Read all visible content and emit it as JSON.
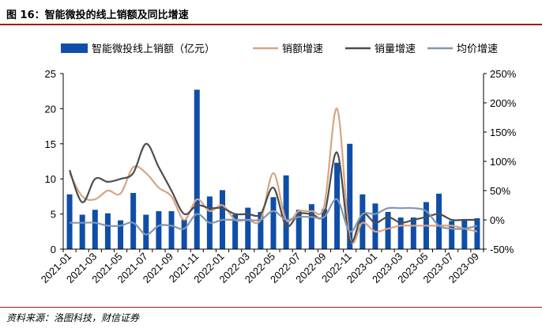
{
  "figure": {
    "title": "图 16：智能微投的线上销额及同比增速",
    "source": "资料来源：洛图科技，财信证券"
  },
  "chart_data": {
    "type": "bar+line",
    "categories": [
      "2021-01",
      "2021-02",
      "2021-03",
      "2021-04",
      "2021-05",
      "2021-06",
      "2021-07",
      "2021-08",
      "2021-09",
      "2021-10",
      "2021-11",
      "2021-12",
      "2022-01",
      "2022-02",
      "2022-03",
      "2022-04",
      "2022-05",
      "2022-06",
      "2022-07",
      "2022-08",
      "2022-09",
      "2022-10",
      "2022-11",
      "2022-12",
      "2023-01",
      "2023-02",
      "2023-03",
      "2023-04",
      "2023-05",
      "2023-06",
      "2023-07",
      "2023-08",
      "2023-09"
    ],
    "x_tick_labels": [
      "2021-01",
      "2021-03",
      "2021-05",
      "2021-07",
      "2021-09",
      "2021-11",
      "2022-01",
      "2022-03",
      "2022-05",
      "2022-07",
      "2022-09",
      "2022-11",
      "2023-01",
      "2023-03",
      "2023-05",
      "2023-07",
      "2023-09"
    ],
    "left_axis": {
      "min": 0,
      "max": 25,
      "ticks": [
        "0",
        "5",
        "10",
        "15",
        "20",
        "25"
      ]
    },
    "right_axis": {
      "min": -50,
      "max": 250,
      "ticks": [
        "-50%",
        "0%",
        "50%",
        "100%",
        "150%",
        "200%",
        "250%"
      ]
    },
    "bar_series": {
      "name": "智能微投线上销额（亿元）",
      "color": "#0f4ea8",
      "values": [
        7.8,
        4.9,
        5.6,
        5.1,
        4.1,
        8.0,
        4.9,
        5.4,
        5.4,
        4.2,
        22.7,
        7.5,
        8.4,
        4.9,
        5.9,
        5.3,
        7.4,
        10.5,
        5.6,
        6.4,
        5.7,
        12.3,
        15.0,
        7.8,
        6.5,
        5.3,
        4.5,
        4.5,
        6.7,
        7.9,
        4.0,
        4.1,
        4.4
      ]
    },
    "line_series": [
      {
        "name": "销额增速",
        "color": "#d9a483",
        "values": [
          80,
          40,
          35,
          50,
          45,
          90,
          80,
          55,
          40,
          0,
          35,
          15,
          25,
          0,
          0,
          0,
          80,
          0,
          15,
          15,
          25,
          190,
          -30,
          -5,
          -20,
          -15,
          -10,
          -10,
          -10,
          -10,
          -10,
          -15,
          -20
        ]
      },
      {
        "name": "销量增速",
        "color": "#4d4d4d",
        "values": [
          85,
          30,
          70,
          65,
          70,
          80,
          130,
          90,
          50,
          10,
          25,
          20,
          20,
          10,
          10,
          10,
          55,
          -10,
          10,
          10,
          10,
          115,
          -35,
          10,
          -5,
          5,
          -5,
          0,
          5,
          10,
          0,
          0,
          0
        ]
      },
      {
        "name": "均价增速",
        "color": "#8497b0",
        "values": [
          -5,
          -5,
          -5,
          -10,
          -10,
          -5,
          -25,
          -10,
          -10,
          -15,
          10,
          -5,
          0,
          0,
          0,
          0,
          15,
          0,
          5,
          5,
          5,
          35,
          -20,
          10,
          10,
          20,
          20,
          20,
          15,
          -10,
          -15,
          -15,
          -10
        ]
      }
    ],
    "legend_position": "top",
    "grid": false
  }
}
